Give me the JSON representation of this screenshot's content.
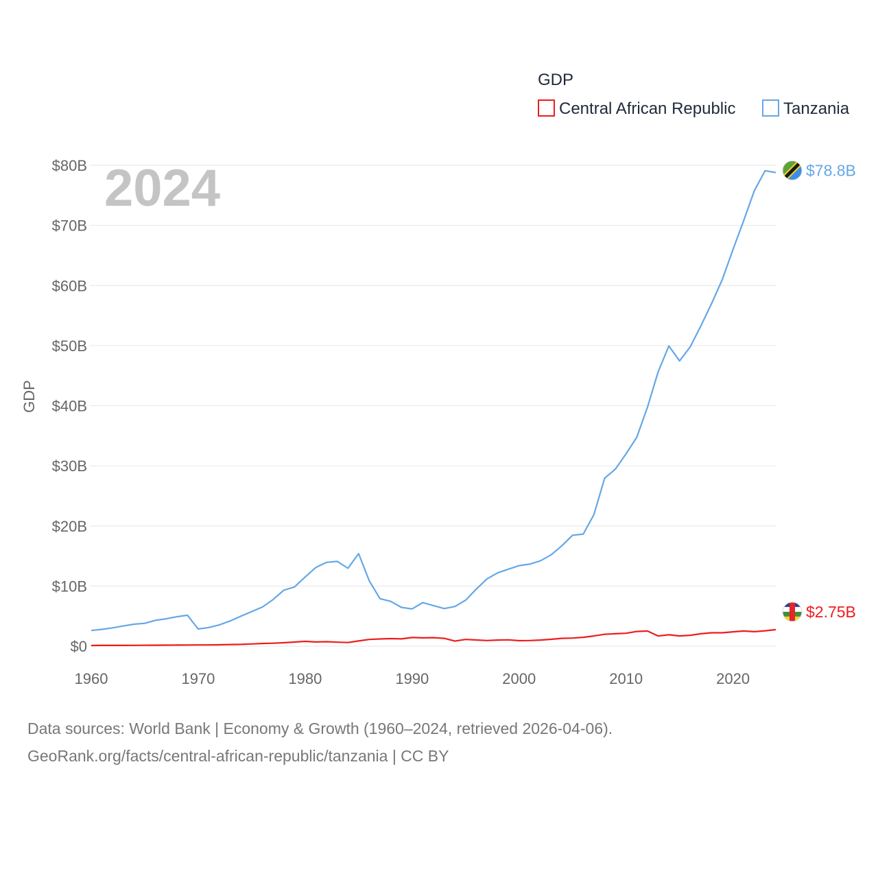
{
  "chart_data": {
    "type": "line",
    "year_label": "2024",
    "legend_title": "GDP",
    "ylabel": "GDP",
    "xlabel": "",
    "xlim": [
      1960,
      2024
    ],
    "ylim": [
      0,
      80
    ],
    "y_unit": "billion USD",
    "x_ticks": [
      1960,
      1970,
      1980,
      1990,
      2000,
      2010,
      2020
    ],
    "x_tick_labels": [
      "1960",
      "1970",
      "1980",
      "1990",
      "2000",
      "2010",
      "2020"
    ],
    "y_ticks": [
      0,
      10,
      20,
      30,
      40,
      50,
      60,
      70,
      80
    ],
    "y_tick_labels": [
      "$0",
      "$10B",
      "$20B",
      "$30B",
      "$40B",
      "$50B",
      "$60B",
      "$70B",
      "$80B"
    ],
    "grid": true,
    "legend_position": "top-right",
    "x": [
      1960,
      1961,
      1962,
      1963,
      1964,
      1965,
      1966,
      1967,
      1968,
      1969,
      1970,
      1971,
      1972,
      1973,
      1974,
      1975,
      1976,
      1977,
      1978,
      1979,
      1980,
      1981,
      1982,
      1983,
      1984,
      1985,
      1986,
      1987,
      1988,
      1989,
      1990,
      1991,
      1992,
      1993,
      1994,
      1995,
      1996,
      1997,
      1998,
      1999,
      2000,
      2001,
      2002,
      2003,
      2004,
      2005,
      2006,
      2007,
      2008,
      2009,
      2010,
      2011,
      2012,
      2013,
      2014,
      2015,
      2016,
      2017,
      2018,
      2019,
      2020,
      2021,
      2022,
      2023,
      2024
    ],
    "series": [
      {
        "name": "Central African Republic",
        "color": "#ee1c1c",
        "end_label": "$2.75B",
        "flag": "flag-central-african-republic",
        "values": [
          0.11,
          0.12,
          0.12,
          0.13,
          0.14,
          0.15,
          0.16,
          0.17,
          0.18,
          0.19,
          0.2,
          0.21,
          0.23,
          0.27,
          0.3,
          0.37,
          0.44,
          0.49,
          0.57,
          0.68,
          0.8,
          0.7,
          0.74,
          0.66,
          0.6,
          0.87,
          1.12,
          1.2,
          1.25,
          1.21,
          1.44,
          1.38,
          1.42,
          1.3,
          0.84,
          1.12,
          1.03,
          0.94,
          1.02,
          1.05,
          0.91,
          0.94,
          1.02,
          1.14,
          1.3,
          1.35,
          1.47,
          1.7,
          1.98,
          2.06,
          2.14,
          2.44,
          2.52,
          1.69,
          1.89,
          1.7,
          1.82,
          2.07,
          2.22,
          2.22,
          2.38,
          2.52,
          2.41,
          2.56,
          2.75
        ]
      },
      {
        "name": "Tanzania",
        "color": "#64a7e6",
        "end_label": "$78.8B",
        "flag": "flag-tanzania",
        "values": [
          2.6,
          2.8,
          3.05,
          3.35,
          3.65,
          3.8,
          4.3,
          4.55,
          4.9,
          5.15,
          2.85,
          3.1,
          3.55,
          4.2,
          5,
          5.75,
          6.5,
          7.75,
          9.3,
          9.85,
          11.5,
          13.1,
          13.95,
          14.1,
          12.95,
          15.4,
          10.85,
          7.9,
          7.45,
          6.45,
          6.2,
          7.25,
          6.75,
          6.25,
          6.6,
          7.65,
          9.5,
          11.2,
          12.2,
          12.8,
          13.4,
          13.65,
          14.2,
          15.2,
          16.7,
          18.45,
          18.65,
          21.9,
          27.95,
          29.45,
          32,
          34.75,
          39.75,
          45.65,
          49.95,
          47.45,
          49.8,
          53.3,
          57,
          61,
          66,
          70.8,
          75.8,
          79.1,
          78.8
        ]
      }
    ]
  },
  "source": {
    "line1": "Data sources: World Bank | Economy & Growth (1960–2024, retrieved 2026-04-06).",
    "line2": "GeoRank.org/facts/central-african-republic/tanzania | CC BY"
  }
}
